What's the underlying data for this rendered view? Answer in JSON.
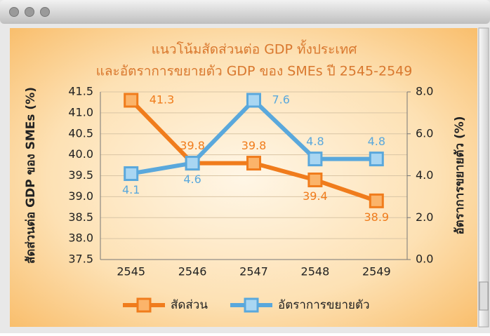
{
  "chart_data": {
    "type": "line",
    "title": "แนวโน้มสัดส่วนต่อ GDP ทั้งประเทศ",
    "subtitle": "และอัตราการขยายตัว GDP ของ SMEs ปี 2545-2549",
    "y_label": "สัดส่วนต่อ GDP ของ SMEs (%)",
    "y2_label": "อัตราการขยายตัว (%)",
    "categories": [
      "2545",
      "2546",
      "2547",
      "2548",
      "2549"
    ],
    "series": [
      {
        "name": "สัดส่วน",
        "color": "#f07c1c",
        "values": [
          41.3,
          39.8,
          39.8,
          39.4,
          38.9
        ]
      },
      {
        "name": "อัตราการขยายตัว",
        "color": "#5aa8dc",
        "axis": "y2",
        "values": [
          4.1,
          4.6,
          7.6,
          4.8,
          4.8
        ]
      }
    ],
    "ylim": [
      37.5,
      41.5
    ],
    "yticks": [
      37.5,
      {
        "value": 38,
        "label": "38.0"
      },
      38.5,
      {
        "value": 39,
        "label": "39.0"
      },
      39.5,
      {
        "value": 40,
        "label": "40.0"
      },
      40.5,
      {
        "value": 41,
        "label": "41.0"
      },
      41.5
    ],
    "y2lim": [
      0,
      8
    ],
    "y2ticks": [
      {
        "value": 0,
        "label": "0.0"
      },
      {
        "value": 2,
        "label": "2.0"
      },
      {
        "value": 4,
        "label": "4.0"
      },
      {
        "value": 6,
        "label": "6.0"
      },
      {
        "value": 8,
        "label": "8.0"
      }
    ],
    "grid": true,
    "legend": "bottom"
  }
}
